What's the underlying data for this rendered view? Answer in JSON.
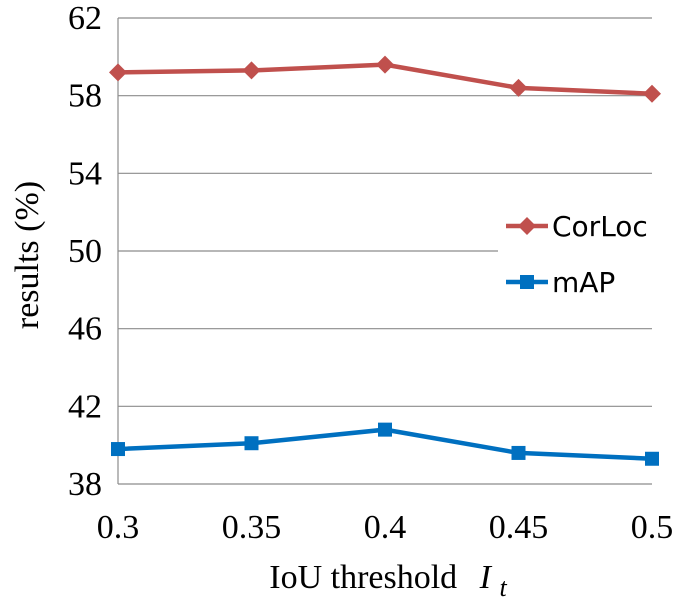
{
  "chart_data": {
    "type": "line",
    "title": "",
    "xlabel": "IoU threshold",
    "xlabel_symbol": "I",
    "xlabel_subscript": "t",
    "ylabel": "results (%)",
    "categories": [
      "0.3",
      "0.35",
      "0.4",
      "0.45",
      "0.5"
    ],
    "ylim": [
      38,
      62
    ],
    "yticks": [
      "38",
      "42",
      "46",
      "50",
      "54",
      "58",
      "62"
    ],
    "grid": true,
    "legend_position": "right",
    "series": [
      {
        "name": "CorLoc",
        "marker": "diamond",
        "color": "#c0504d",
        "values": [
          59.2,
          59.3,
          59.6,
          58.4,
          58.1
        ]
      },
      {
        "name": "mAP",
        "marker": "square",
        "color": "#0070c0",
        "values": [
          39.8,
          40.1,
          40.8,
          39.6,
          39.3
        ]
      }
    ]
  }
}
